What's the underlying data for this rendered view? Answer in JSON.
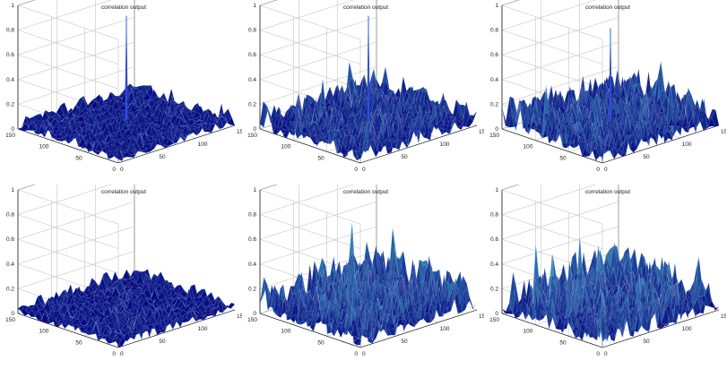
{
  "chart_data": [
    {
      "type": "surface",
      "title": "correlation output",
      "zlim": [
        0,
        1
      ],
      "xlim": [
        0,
        150
      ],
      "ylim": [
        0,
        150
      ],
      "z_ticks": [
        "0",
        "0.2",
        "0.4",
        "0.6",
        "0.8",
        "1"
      ],
      "x_ticks": [
        "0",
        "50",
        "100",
        "150"
      ],
      "y_ticks": [
        "0",
        "50",
        "100",
        "150"
      ],
      "peak": {
        "x": 75,
        "y": 75,
        "z": 0.9
      },
      "noise_level": 0.1,
      "colors": {
        "low": "#00007a",
        "high": "#5be3e0"
      }
    },
    {
      "type": "surface",
      "title": "correlation output",
      "zlim": [
        0,
        1
      ],
      "xlim": [
        0,
        150
      ],
      "ylim": [
        0,
        150
      ],
      "z_ticks": [
        "0",
        "0.2",
        "0.4",
        "0.6",
        "0.8",
        "1"
      ],
      "x_ticks": [
        "0",
        "50",
        "100",
        "150"
      ],
      "y_ticks": [
        "0",
        "50",
        "100",
        "150"
      ],
      "peak": {
        "x": 75,
        "y": 75,
        "z": 0.9
      },
      "noise_level": 0.2,
      "colors": {
        "low": "#00007a",
        "high": "#5be3e0"
      }
    },
    {
      "type": "surface",
      "title": "correlation output",
      "zlim": [
        0,
        1
      ],
      "xlim": [
        0,
        150
      ],
      "ylim": [
        0,
        150
      ],
      "z_ticks": [
        "0",
        "0.2",
        "0.4",
        "0.6",
        "0.8",
        "1"
      ],
      "x_ticks": [
        "0",
        "50",
        "100",
        "150"
      ],
      "y_ticks": [
        "0",
        "50",
        "100",
        "150"
      ],
      "peak": {
        "x": 75,
        "y": 75,
        "z": 0.8
      },
      "noise_level": 0.25,
      "colors": {
        "low": "#00007a",
        "high": "#5be3e0"
      }
    },
    {
      "type": "surface",
      "title": "correlation output",
      "zlim": [
        0,
        1
      ],
      "xlim": [
        0,
        150
      ],
      "ylim": [
        0,
        150
      ],
      "z_ticks": [
        "0",
        "0.2",
        "0.4",
        "0.6",
        "0.8",
        "1"
      ],
      "x_ticks": [
        "0",
        "50",
        "100",
        "150"
      ],
      "y_ticks": [
        "0",
        "50",
        "100",
        "150"
      ],
      "peak": null,
      "noise_level": 0.1,
      "colors": {
        "low": "#00007a",
        "high": "#5be3e0"
      }
    },
    {
      "type": "surface",
      "title": "correlation output",
      "zlim": [
        0,
        1
      ],
      "xlim": [
        0,
        150
      ],
      "ylim": [
        0,
        150
      ],
      "z_ticks": [
        "0",
        "0.2",
        "0.4",
        "0.6",
        "0.8",
        "1"
      ],
      "x_ticks": [
        "0",
        "50",
        "100",
        "150"
      ],
      "y_ticks": [
        "0",
        "50",
        "100",
        "150"
      ],
      "peak": null,
      "noise_level": 0.3,
      "colors": {
        "low": "#00007a",
        "high": "#5be3e0"
      }
    },
    {
      "type": "surface",
      "title": "correlation output",
      "zlim": [
        0,
        1
      ],
      "xlim": [
        0,
        150
      ],
      "ylim": [
        0,
        150
      ],
      "z_ticks": [
        "0",
        "0.2",
        "0.4",
        "0.6",
        "0.8",
        "1"
      ],
      "x_ticks": [
        "0",
        "50",
        "100",
        "150"
      ],
      "y_ticks": [
        "0",
        "50",
        "100",
        "150"
      ],
      "peak": null,
      "noise_level": 0.3,
      "colors": {
        "low": "#00007a",
        "high": "#5be3e0"
      }
    }
  ]
}
